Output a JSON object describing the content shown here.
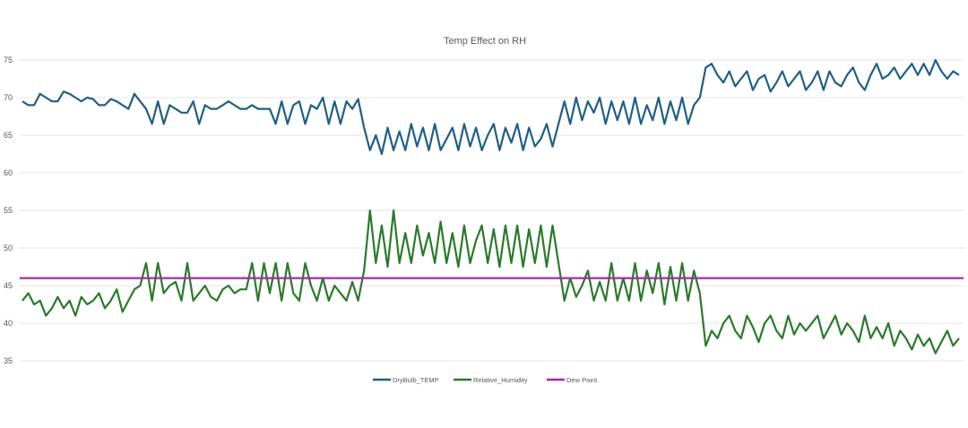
{
  "chart_data": {
    "type": "line",
    "title": "Temp Effect on RH",
    "xlabel": "",
    "ylabel": "",
    "ylim": [
      35,
      75
    ],
    "yticks": [
      "35",
      "40",
      "45",
      "50",
      "55",
      "60",
      "65",
      "70",
      "75"
    ],
    "grid": true,
    "legend_position": "bottom",
    "series": [
      {
        "name": "DryBulb_TEMP",
        "color": "#1f5f86",
        "values": [
          69.5,
          69,
          69,
          70.5,
          70,
          69.5,
          69.5,
          70.8,
          70.5,
          70,
          69.5,
          70,
          69.8,
          69,
          69,
          69.8,
          69.5,
          69,
          68.5,
          70.5,
          69.5,
          68.5,
          66.5,
          69.5,
          66.5,
          69,
          68.5,
          68,
          68,
          69.5,
          66.5,
          69,
          68.5,
          68.5,
          69,
          69.5,
          69,
          68.5,
          68.5,
          69,
          68.5,
          68.5,
          68.5,
          66.5,
          69.5,
          66.5,
          69,
          69.5,
          66.5,
          69,
          68.5,
          70,
          66.5,
          69.5,
          66.5,
          69.5,
          68.5,
          69.8,
          66,
          63,
          65,
          62.5,
          66,
          63,
          65.5,
          63,
          66.5,
          63.5,
          66,
          63,
          66.5,
          63,
          64.5,
          66,
          63,
          66.5,
          63.5,
          66,
          63,
          65,
          66.5,
          63,
          66,
          64,
          66.5,
          63,
          66,
          63.5,
          64.5,
          66.5,
          63.5,
          66.5,
          69.5,
          66.5,
          70,
          67,
          69.5,
          68,
          70,
          66.5,
          69.5,
          67,
          69.5,
          66.5,
          70,
          66.5,
          69,
          67,
          70,
          66.5,
          69.5,
          67,
          70,
          66.5,
          69,
          70,
          74,
          74.5,
          73,
          72,
          73.5,
          71.5,
          72.5,
          73.5,
          71,
          72.5,
          73,
          70.8,
          72,
          73.5,
          71.5,
          72.5,
          73.5,
          71,
          72,
          73.5,
          71,
          73.5,
          72,
          71.5,
          73,
          74,
          72,
          71,
          73,
          74.5,
          72.5,
          73,
          74,
          72.5,
          73.5,
          74.5,
          73,
          74.5,
          73,
          75,
          73.5,
          72.5,
          73.5,
          73
        ]
      },
      {
        "name": "Relative_Humidity",
        "color": "#2a7a2a",
        "values": [
          43,
          44,
          42.5,
          43,
          41,
          42,
          43.5,
          42,
          43,
          41,
          43.5,
          42.5,
          43,
          44,
          42,
          43,
          44.5,
          41.5,
          43,
          44.5,
          45,
          48,
          43,
          48,
          44,
          45,
          45.5,
          43,
          48,
          43,
          44,
          45,
          43.5,
          43,
          44.5,
          45,
          44,
          44.5,
          44.5,
          48,
          43,
          48,
          44,
          48,
          43,
          48,
          44,
          43,
          48,
          45,
          43,
          46,
          43,
          45,
          44,
          43,
          45.5,
          43,
          47,
          55,
          48,
          53,
          47.5,
          55,
          48,
          52,
          48,
          53,
          49,
          52,
          48,
          53.5,
          48,
          52,
          47.5,
          53,
          48,
          51,
          53,
          48,
          52.5,
          47.5,
          53,
          48,
          53,
          47.5,
          52.5,
          48,
          53,
          47.5,
          53,
          48,
          43,
          46,
          43.5,
          45,
          47,
          43,
          45.5,
          43,
          48,
          43,
          46,
          43,
          48,
          43,
          47,
          44,
          48,
          42.5,
          47.5,
          43,
          48,
          43,
          47,
          44,
          37,
          39,
          38,
          40,
          41,
          39,
          38,
          41,
          39.5,
          37.5,
          40,
          41,
          39,
          38,
          41,
          38.5,
          40,
          39,
          40,
          41,
          38,
          39.5,
          41,
          38.5,
          40,
          39,
          37.5,
          41,
          38,
          39.5,
          38,
          40,
          37,
          39,
          38,
          36.5,
          38.5,
          37,
          38,
          36,
          37.5,
          39,
          37,
          38
        ]
      },
      {
        "name": "Dew Point",
        "color": "#a62aa6",
        "values": [
          46
        ]
      }
    ]
  }
}
